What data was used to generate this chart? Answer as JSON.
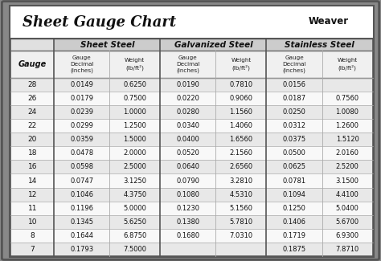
{
  "title": "Sheet Gauge Chart",
  "gauges": [
    28,
    26,
    24,
    22,
    20,
    18,
    16,
    14,
    12,
    11,
    10,
    8,
    7
  ],
  "sheet_steel": {
    "label": "Sheet Steel",
    "decimal": [
      "0.0149",
      "0.0179",
      "0.0239",
      "0.0299",
      "0.0359",
      "0.0478",
      "0.0598",
      "0.0747",
      "0.1046",
      "0.1196",
      "0.1345",
      "0.1644",
      "0.1793"
    ],
    "weight": [
      "0.6250",
      "0.7500",
      "1.0000",
      "1.2500",
      "1.5000",
      "2.0000",
      "2.5000",
      "3.1250",
      "4.3750",
      "5.0000",
      "5.6250",
      "6.8750",
      "7.5000"
    ]
  },
  "galvanized_steel": {
    "label": "Galvanized Steel",
    "decimal": [
      "0.0190",
      "0.0220",
      "0.0280",
      "0.0340",
      "0.0400",
      "0.0520",
      "0.0640",
      "0.0790",
      "0.1080",
      "0.1230",
      "0.1380",
      "0.1680",
      ""
    ],
    "weight": [
      "0.7810",
      "0.9060",
      "1.1560",
      "1.4060",
      "1.6560",
      "2.1560",
      "2.6560",
      "3.2810",
      "4.5310",
      "5.1560",
      "5.7810",
      "7.0310",
      ""
    ]
  },
  "stainless_steel": {
    "label": "Stainless Steel",
    "decimal": [
      "0.0156",
      "0.0187",
      "0.0250",
      "0.0312",
      "0.0375",
      "0.0500",
      "0.0625",
      "0.0781",
      "0.1094",
      "0.1250",
      "0.1406",
      "0.1719",
      "0.1875"
    ],
    "weight": [
      "",
      "0.7560",
      "1.0080",
      "1.2600",
      "1.5120",
      "2.0160",
      "2.5200",
      "3.1500",
      "4.4100",
      "5.0400",
      "5.6700",
      "6.9300",
      "7.8710"
    ]
  },
  "outer_bg": "#888888",
  "row_even_bg": "#e8e8e8",
  "row_odd_bg": "#f8f8f8",
  "sec_header_bg": "#cccccc",
  "sub_header_bg": "#f0f0f0",
  "gauge_col_bg": "#e0e0e0",
  "border_color": "#555555",
  "divider_color": "#aaaaaa",
  "text_color": "#111111"
}
